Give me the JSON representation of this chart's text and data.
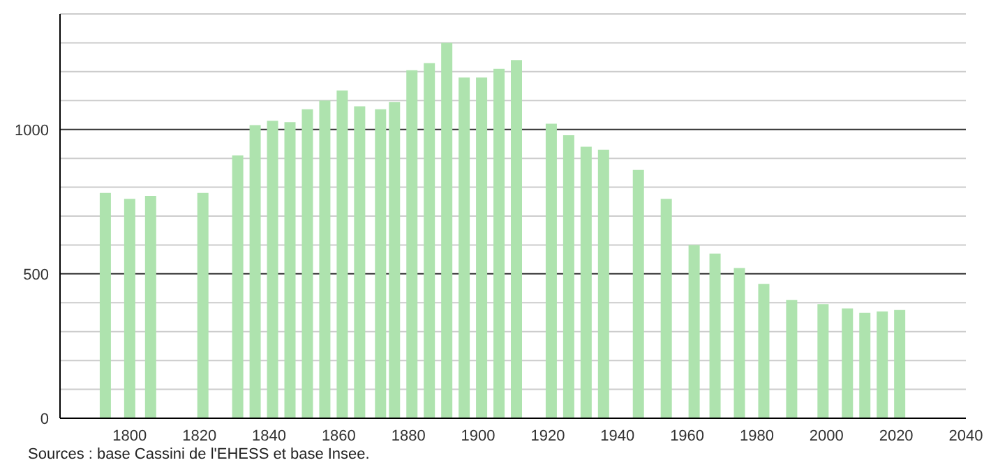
{
  "chart_data": {
    "type": "bar",
    "x": [
      1793,
      1800,
      1806,
      1821,
      1831,
      1836,
      1841,
      1846,
      1851,
      1856,
      1861,
      1866,
      1872,
      1876,
      1881,
      1886,
      1891,
      1896,
      1901,
      1906,
      1911,
      1921,
      1926,
      1931,
      1936,
      1946,
      1954,
      1962,
      1968,
      1975,
      1982,
      1990,
      1999,
      2006,
      2011,
      2016,
      2021
    ],
    "values": [
      780,
      760,
      770,
      780,
      910,
      1015,
      1030,
      1025,
      1070,
      1100,
      1135,
      1080,
      1070,
      1095,
      1205,
      1230,
      1300,
      1180,
      1180,
      1210,
      1240,
      1020,
      980,
      940,
      930,
      860,
      760,
      600,
      570,
      520,
      465,
      410,
      395,
      380,
      365,
      370,
      375
    ],
    "color": "#aee3ae",
    "xlim": [
      1780,
      2040
    ],
    "xticks": [
      1800,
      1820,
      1840,
      1860,
      1880,
      1900,
      1920,
      1940,
      1960,
      1980,
      2000,
      2020,
      2040
    ],
    "ylim": [
      0,
      1400
    ],
    "yticks": [
      0,
      {
        "value": 100,
        "label": null
      },
      {
        "value": 200,
        "label": null
      },
      {
        "value": 300,
        "label": null
      },
      {
        "value": 400,
        "label": null
      },
      500,
      {
        "value": 600,
        "label": null
      },
      {
        "value": 700,
        "label": null
      },
      {
        "value": 800,
        "label": null
      },
      {
        "value": 900,
        "label": null
      },
      1000,
      {
        "value": 1100,
        "label": null
      },
      {
        "value": 1200,
        "label": null
      },
      {
        "value": 1300,
        "label": null
      },
      {
        "value": 1400,
        "label": null
      }
    ],
    "grid": "y",
    "annotations": [
      "Sources : base Cassini de l'EHESS et base Insee."
    ]
  }
}
